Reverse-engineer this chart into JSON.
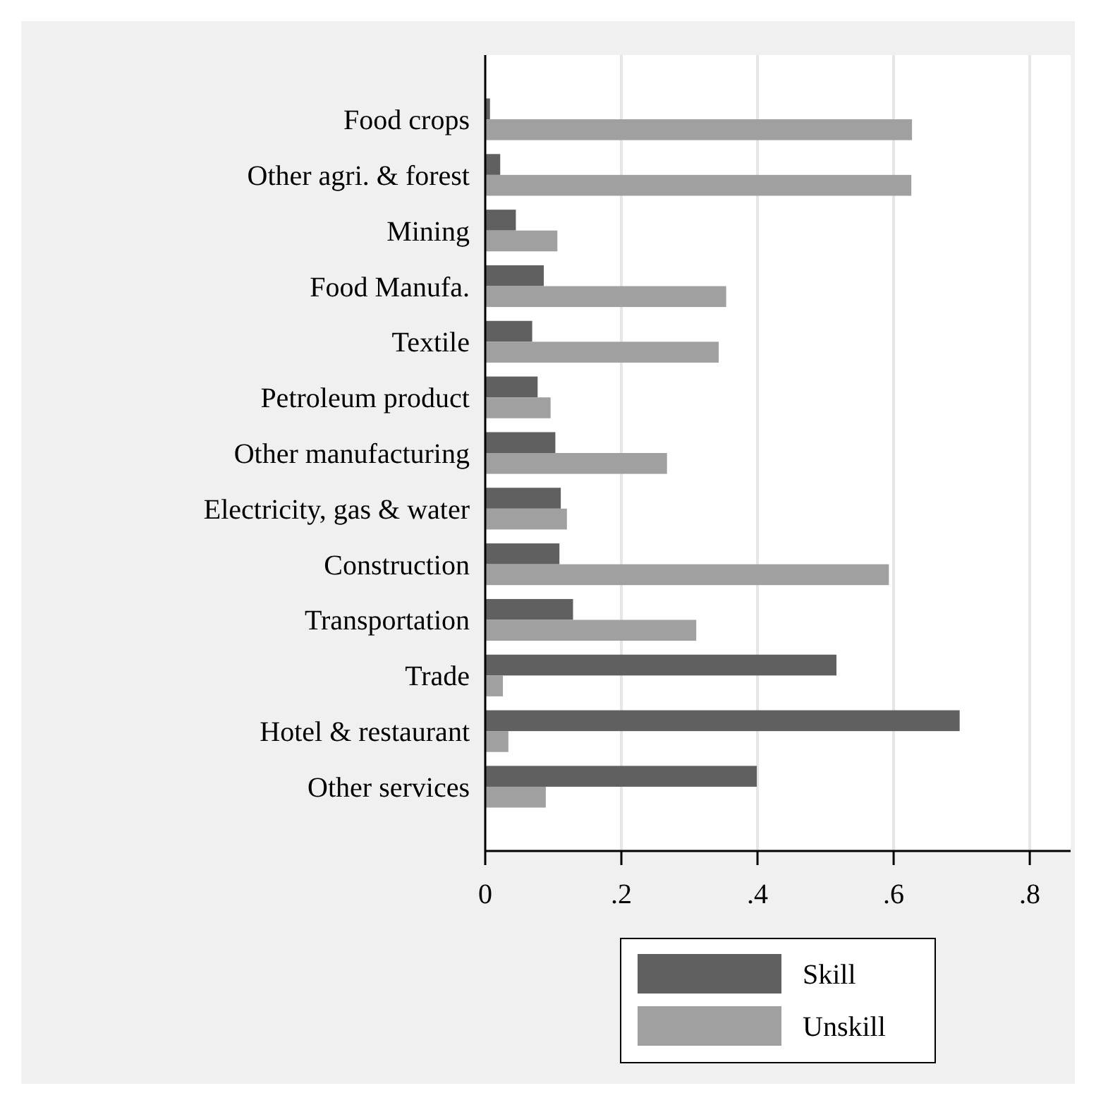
{
  "chart_data": {
    "type": "bar",
    "orientation": "horizontal",
    "categories": [
      "Food crops",
      "Other agri. & forest",
      "Mining",
      "Food Manufa.",
      "Textile",
      "Petroleum product",
      "Other manufacturing",
      "Electricity, gas & water",
      "Construction",
      "Transportation",
      "Trade",
      "Hotel & restaurant",
      "Other services"
    ],
    "series": [
      {
        "name": "Skill",
        "color": "#606060",
        "values": [
          0.007,
          0.022,
          0.045,
          0.086,
          0.069,
          0.077,
          0.103,
          0.111,
          0.109,
          0.129,
          0.516,
          0.697,
          0.399
        ]
      },
      {
        "name": "Unskill",
        "color": "#a0a0a0",
        "values": [
          0.627,
          0.626,
          0.106,
          0.354,
          0.343,
          0.096,
          0.267,
          0.12,
          0.593,
          0.31,
          0.026,
          0.034,
          0.089
        ]
      }
    ],
    "xlim": [
      0,
      0.86
    ],
    "xticks": [
      {
        "value": 0,
        "label": "0"
      },
      {
        "value": 0.2,
        "label": ".2"
      },
      {
        "value": 0.4,
        "label": ".4"
      },
      {
        "value": 0.6,
        "label": ".6"
      },
      {
        "value": 0.8,
        "label": ".8"
      }
    ],
    "grid": "x",
    "legend": "bottom"
  }
}
